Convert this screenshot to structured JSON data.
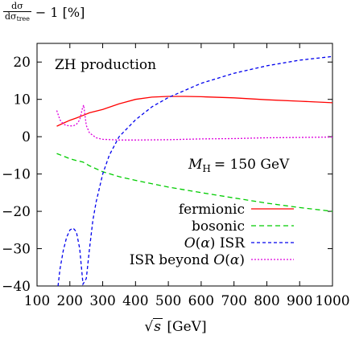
{
  "chart_data": {
    "type": "line",
    "title": "ZH production",
    "annotation": "M_H = 150 GeV",
    "annotation_parts": {
      "symbol": "M",
      "sub": "H",
      "value": "= 150 GeV"
    },
    "ylabel": {
      "num": "dσ",
      "den": "dσ",
      "den_sub": "tree",
      "rest": "− 1 [%]"
    },
    "xlabel": {
      "radicand": "s",
      "unit": "[GeV]"
    },
    "xlim": [
      100,
      1000
    ],
    "ylim": [
      -40,
      25
    ],
    "xticks": [
      100,
      200,
      300,
      400,
      500,
      600,
      700,
      800,
      900,
      1000
    ],
    "yticks": [
      -40,
      -30,
      -20,
      -10,
      0,
      10,
      20
    ],
    "xtick_labels": [
      "100",
      "200",
      "300",
      "400",
      "500",
      "600",
      "700",
      "800",
      "900",
      "1000"
    ],
    "ytick_labels": [
      "−40",
      "−30",
      "−20",
      "−10",
      "0",
      "10",
      "20"
    ],
    "grid": false,
    "legend_position": "bottom-right",
    "series": [
      {
        "name": "fermionic",
        "color": "#ff0000",
        "dash": "solid",
        "x": [
          160,
          180,
          200,
          220,
          240,
          260,
          300,
          350,
          400,
          450,
          500,
          550,
          600,
          700,
          800,
          900,
          1000
        ],
        "y": [
          2.8,
          3.6,
          4.4,
          5.0,
          5.7,
          6.4,
          7.3,
          8.8,
          10.0,
          10.6,
          10.8,
          10.8,
          10.7,
          10.4,
          9.9,
          9.5,
          9.1
        ]
      },
      {
        "name": "bosonic",
        "color": "#00cc00",
        "dash": "6,4",
        "x": [
          160,
          180,
          200,
          220,
          240,
          260,
          300,
          350,
          400,
          500,
          600,
          700,
          800,
          900,
          1000
        ],
        "y": [
          -4.5,
          -5.2,
          -5.9,
          -6.4,
          -6.8,
          -7.8,
          -9.4,
          -10.7,
          -11.7,
          -13.5,
          -15.0,
          -16.4,
          -17.8,
          -19.0,
          -20.0
        ]
      },
      {
        "name": "O(α) ISR",
        "color": "#0000ee",
        "dash": "4,3",
        "x": [
          164,
          170,
          180,
          190,
          200,
          210,
          220,
          230,
          240,
          250,
          260,
          270,
          280,
          300,
          320,
          350,
          400,
          450,
          500,
          600,
          700,
          800,
          900,
          1000
        ],
        "y": [
          -40,
          -35.5,
          -30.5,
          -27,
          -25,
          -24.5,
          -25.5,
          -30,
          -39.5,
          -38,
          -30,
          -22.5,
          -17.5,
          -10,
          -5,
          0,
          4.5,
          8,
          10.5,
          14.3,
          17,
          19,
          20.5,
          21.5
        ]
      },
      {
        "name": "ISR beyond O(α)",
        "color": "#dd00dd",
        "dash": "2,2",
        "x": [
          160,
          170,
          180,
          190,
          200,
          210,
          220,
          230,
          238,
          242,
          250,
          260,
          280,
          300,
          350,
          400,
          500,
          600,
          700,
          800,
          900,
          1000
        ],
        "y": [
          7.0,
          4.5,
          3.4,
          3.0,
          2.9,
          2.9,
          3.3,
          4.5,
          7.5,
          8.5,
          3.0,
          1.0,
          -0.3,
          -0.7,
          -0.9,
          -0.9,
          -0.8,
          -0.6,
          -0.5,
          -0.3,
          -0.2,
          -0.1
        ]
      }
    ]
  }
}
